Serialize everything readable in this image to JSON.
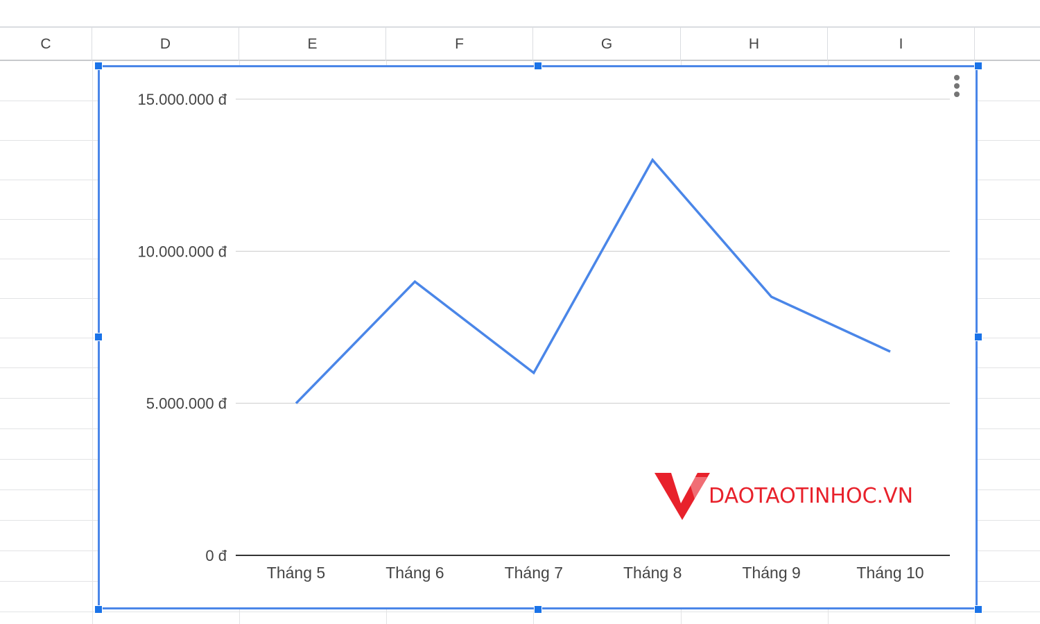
{
  "sheet": {
    "columns": [
      "C",
      "D",
      "E",
      "F",
      "G",
      "H",
      "I"
    ]
  },
  "chart": {
    "menu_icon": "more-vert-icon",
    "line_color": "#4a86e8",
    "selection_color": "#1a73e8"
  },
  "chart_data": {
    "type": "line",
    "categories": [
      "Tháng 5",
      "Tháng 6",
      "Tháng 7",
      "Tháng 8",
      "Tháng 9",
      "Tháng 10"
    ],
    "values": [
      5000000,
      9000000,
      6000000,
      13000000,
      8500000,
      6700000
    ],
    "y_ticks": [
      "0 đ",
      "5.000.000 đ",
      "10.000.000 đ",
      "15.000.000 đ"
    ],
    "y_tick_values": [
      0,
      5000000,
      10000000,
      15000000
    ],
    "ylim": [
      0,
      15000000
    ],
    "grid": true,
    "legend": "none",
    "title": "",
    "xlabel": "",
    "ylabel": ""
  },
  "watermark": {
    "text": "DAOTAOTINHOC.VN",
    "color": "#e8212b"
  }
}
